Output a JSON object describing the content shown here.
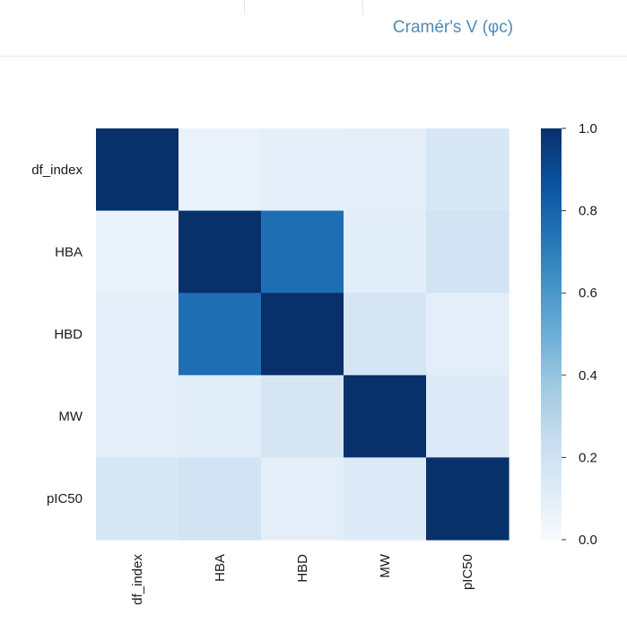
{
  "tab": {
    "active_label": "Cramér's V (φc)"
  },
  "chart_data": {
    "type": "heatmap",
    "title": "",
    "xlabel": "",
    "ylabel": "",
    "rows": [
      "df_index",
      "HBA",
      "HBD",
      "MW",
      "pIC50"
    ],
    "cols": [
      "df_index",
      "HBA",
      "HBD",
      "MW",
      "pIC50"
    ],
    "values": [
      [
        1.0,
        0.07,
        0.09,
        0.1,
        0.16
      ],
      [
        0.07,
        1.0,
        0.76,
        0.11,
        0.19
      ],
      [
        0.09,
        0.76,
        1.0,
        0.17,
        0.1
      ],
      [
        0.1,
        0.11,
        0.17,
        1.0,
        0.13
      ],
      [
        0.16,
        0.19,
        0.1,
        0.13,
        1.0
      ]
    ],
    "colorscale": "Blues",
    "vmin": 0.0,
    "vmax": 1.0,
    "colorbar_ticks": [
      "0.0",
      "0.2",
      "0.4",
      "0.6",
      "0.8",
      "1.0"
    ]
  }
}
